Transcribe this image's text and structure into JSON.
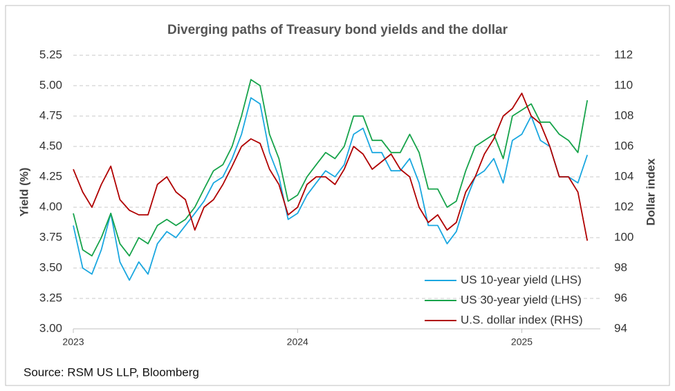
{
  "chart_data": {
    "type": "line",
    "title": "Diverging paths of Treasury bond yields and the dollar",
    "source": "Source: RSM US LLP, Bloomberg",
    "y_label": "Yield (%)",
    "y2_label": "Dollar index",
    "x": [
      2023,
      2023.042,
      2023.083,
      2023.125,
      2023.167,
      2023.208,
      2023.25,
      2023.292,
      2023.333,
      2023.375,
      2023.417,
      2023.458,
      2023.5,
      2023.542,
      2023.583,
      2023.625,
      2023.667,
      2023.708,
      2023.75,
      2023.792,
      2023.833,
      2023.875,
      2023.917,
      2023.958,
      2024,
      2024.042,
      2024.083,
      2024.125,
      2024.167,
      2024.208,
      2024.25,
      2024.292,
      2024.333,
      2024.375,
      2024.417,
      2024.458,
      2024.5,
      2024.542,
      2024.583,
      2024.625,
      2024.667,
      2024.708,
      2024.75,
      2024.792,
      2024.833,
      2024.875,
      2024.917,
      2024.958,
      2025,
      2025.042,
      2025.083,
      2025.125,
      2025.167,
      2025.208,
      2025.25,
      2025.292
    ],
    "series": [
      {
        "name": "US 10-year yield (LHS)",
        "color": "#1aa7e0",
        "values": [
          3.85,
          3.5,
          3.45,
          3.65,
          3.95,
          3.55,
          3.4,
          3.55,
          3.45,
          3.7,
          3.8,
          3.75,
          3.85,
          3.95,
          4.05,
          4.2,
          4.25,
          4.4,
          4.6,
          4.9,
          4.85,
          4.45,
          4.25,
          3.9,
          3.95,
          4.1,
          4.2,
          4.3,
          4.25,
          4.35,
          4.6,
          4.65,
          4.45,
          4.45,
          4.3,
          4.3,
          4.4,
          4.2,
          3.85,
          3.85,
          3.7,
          3.8,
          4.05,
          4.25,
          4.3,
          4.4,
          4.2,
          4.55,
          4.6,
          4.75,
          4.55,
          4.5,
          4.25,
          4.25,
          4.2,
          4.43
        ]
      },
      {
        "name": "US 30-year yield (LHS)",
        "color": "#16a34a",
        "values": [
          3.95,
          3.65,
          3.6,
          3.75,
          3.95,
          3.7,
          3.6,
          3.75,
          3.7,
          3.85,
          3.9,
          3.85,
          3.9,
          4.0,
          4.15,
          4.3,
          4.35,
          4.5,
          4.75,
          5.05,
          5.0,
          4.6,
          4.4,
          4.05,
          4.1,
          4.25,
          4.35,
          4.45,
          4.4,
          4.5,
          4.75,
          4.75,
          4.55,
          4.55,
          4.45,
          4.45,
          4.6,
          4.45,
          4.15,
          4.15,
          4.0,
          4.05,
          4.3,
          4.5,
          4.55,
          4.6,
          4.4,
          4.75,
          4.8,
          4.85,
          4.7,
          4.7,
          4.6,
          4.55,
          4.45,
          4.88
        ]
      },
      {
        "name": "U.S. dollar index (RHS)",
        "color": "#b00000",
        "axis": "y2",
        "values": [
          104.5,
          103.0,
          102.0,
          103.5,
          104.7,
          102.5,
          101.8,
          101.5,
          101.5,
          103.5,
          104.0,
          103.0,
          102.5,
          100.5,
          102.0,
          102.5,
          103.5,
          104.7,
          106.0,
          106.5,
          106.2,
          104.5,
          103.5,
          101.5,
          102.0,
          103.5,
          104.0,
          104.0,
          103.5,
          104.5,
          106.0,
          105.5,
          104.5,
          105.0,
          105.5,
          104.5,
          104.0,
          102.0,
          101.0,
          101.5,
          100.5,
          101.0,
          103.0,
          104.0,
          105.5,
          106.5,
          108.0,
          108.5,
          109.5,
          108.0,
          107.5,
          106.0,
          104.0,
          104.0,
          103.0,
          99.8
        ]
      }
    ],
    "xlim": [
      2023,
      2025.35
    ],
    "xticks": [
      2023,
      2024,
      2025
    ],
    "ylim": [
      3.0,
      5.25
    ],
    "yticks": [
      {
        "value": 3.0,
        "label": "3.00"
      },
      {
        "value": 3.25,
        "label": "3.25"
      },
      {
        "value": 3.5,
        "label": "3.50"
      },
      {
        "value": 3.75,
        "label": "3.75"
      },
      {
        "value": 4.0,
        "label": "4.00"
      },
      {
        "value": 4.25,
        "label": "4.25"
      },
      {
        "value": 4.5,
        "label": "4.50"
      },
      {
        "value": 4.75,
        "label": "4.75"
      },
      {
        "value": 5.0,
        "label": "5.00"
      },
      {
        "value": 5.25,
        "label": "5.25"
      }
    ],
    "y2lim": [
      94,
      112
    ],
    "y2ticks": [
      94,
      96,
      98,
      100,
      102,
      104,
      106,
      108,
      110,
      112
    ],
    "grid": true,
    "legend": "lower right"
  }
}
